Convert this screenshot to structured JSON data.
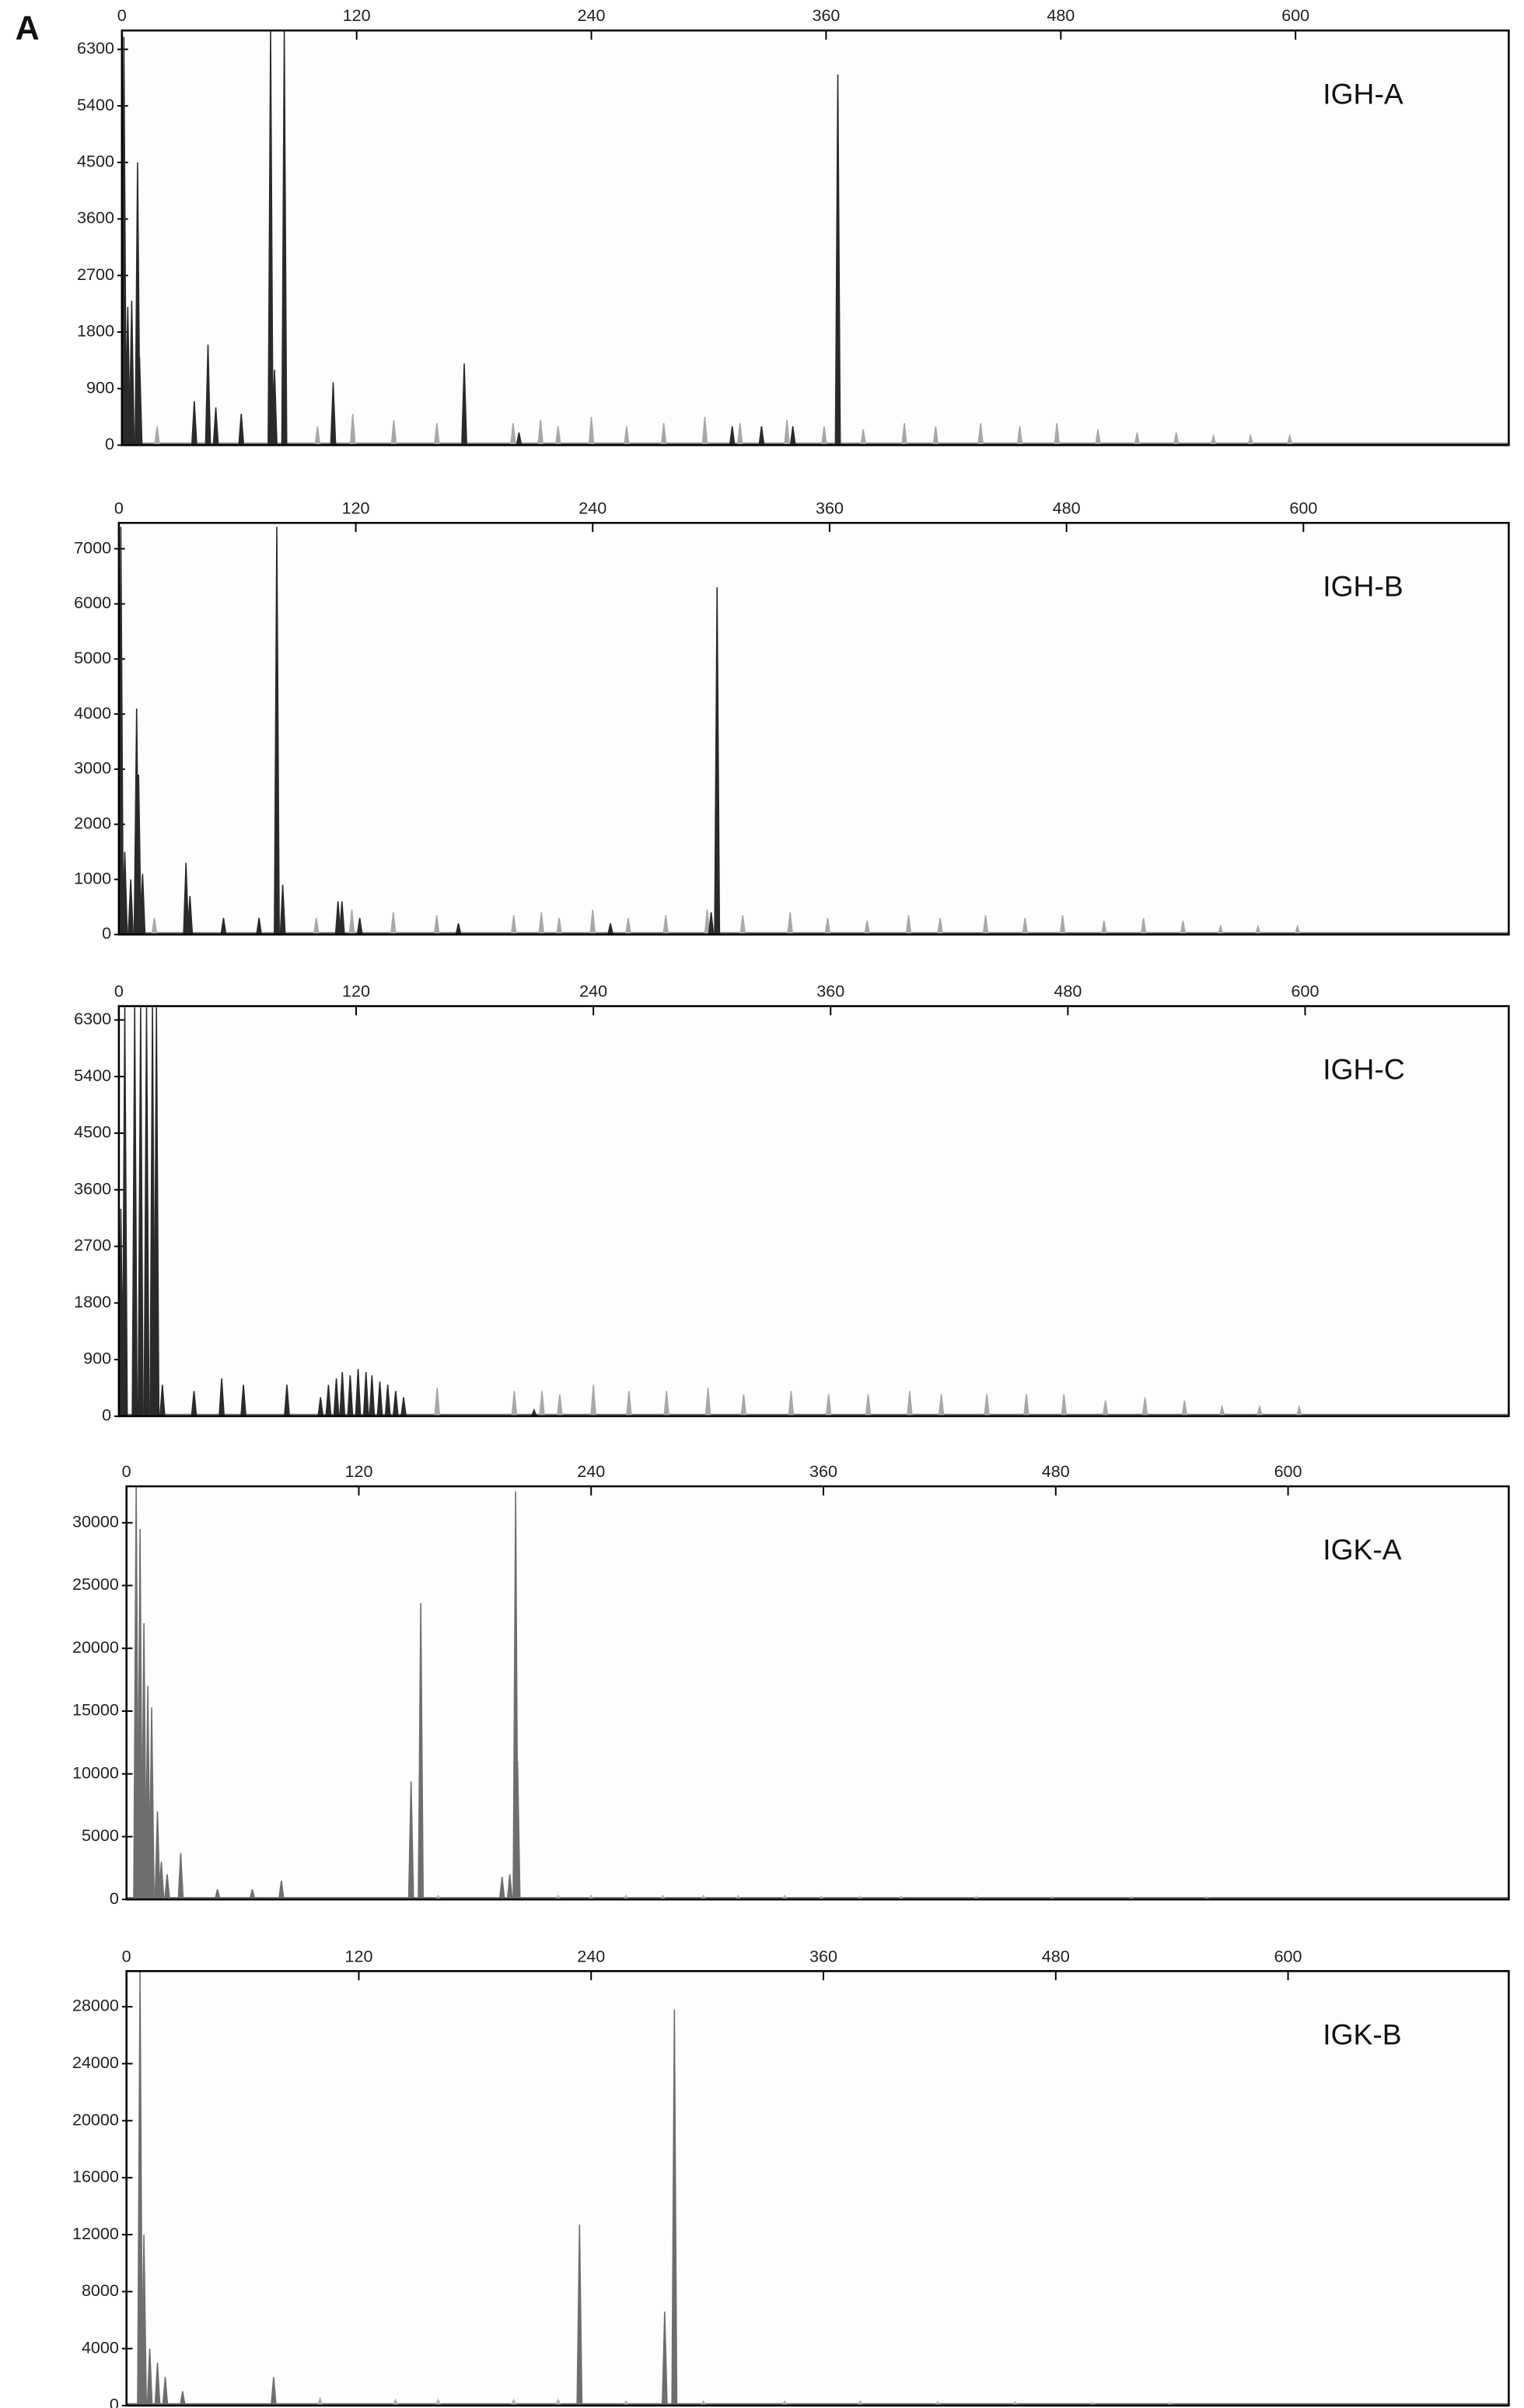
{
  "panel_label": "A",
  "chart_data": [
    {
      "type": "peaks",
      "label": "IGH-A",
      "xlim": [
        0,
        709
      ],
      "xticks": [
        0,
        120,
        240,
        360,
        480,
        600
      ],
      "ylim": [
        0,
        6600
      ],
      "yticks": [
        0,
        900,
        1800,
        2700,
        3600,
        4500,
        5400,
        6300
      ],
      "series": [
        {
          "color": "#2a2a2a",
          "x": [
            1,
            3,
            5,
            8,
            9,
            37,
            44,
            48,
            61,
            76,
            78,
            83,
            108,
            175,
            203,
            312,
            327,
            343,
            366
          ],
          "values": [
            6500,
            2200,
            2300,
            4500,
            1400,
            700,
            1600,
            600,
            500,
            6600,
            1200,
            6600,
            1000,
            1300,
            200,
            300,
            300,
            300,
            5900
          ]
        },
        {
          "color": "#a8a8a8",
          "x": [
            18,
            100,
            118,
            139,
            161,
            200,
            214,
            223,
            240,
            258,
            277,
            298,
            316,
            340,
            359,
            379,
            400,
            416,
            439,
            459,
            478,
            499,
            519,
            539,
            558,
            577,
            597
          ],
          "values": [
            300,
            300,
            500,
            400,
            350,
            350,
            400,
            300,
            450,
            300,
            350,
            450,
            350,
            400,
            300,
            250,
            350,
            300,
            350,
            300,
            350,
            250,
            200,
            200,
            150,
            150,
            150
          ]
        }
      ]
    },
    {
      "type": "peaks",
      "label": "IGH-B",
      "xlim": [
        0,
        704
      ],
      "xticks": [
        0,
        120,
        240,
        360,
        480,
        600
      ],
      "ylim": [
        0,
        7470
      ],
      "yticks": [
        0,
        1000,
        2000,
        3000,
        4000,
        5000,
        6000,
        7000
      ],
      "series": [
        {
          "color": "#2a2a2a",
          "x": [
            1,
            3,
            6,
            9,
            10,
            12,
            34,
            36,
            53,
            71,
            80,
            83,
            111,
            113,
            122,
            172,
            249,
            300,
            303
          ],
          "values": [
            7400,
            1500,
            1000,
            4100,
            2900,
            1100,
            1300,
            700,
            300,
            300,
            7400,
            900,
            600,
            600,
            300,
            200,
            200,
            400,
            6300
          ]
        },
        {
          "color": "#a8a8a8",
          "x": [
            18,
            100,
            118,
            139,
            161,
            200,
            214,
            223,
            240,
            258,
            277,
            298,
            316,
            340,
            359,
            379,
            400,
            416,
            439,
            459,
            478,
            499,
            519,
            539,
            558,
            577,
            597
          ],
          "values": [
            300,
            300,
            450,
            400,
            350,
            350,
            400,
            300,
            450,
            300,
            350,
            450,
            350,
            400,
            300,
            250,
            350,
            300,
            350,
            300,
            350,
            250,
            300,
            250,
            150,
            150,
            150
          ]
        }
      ]
    },
    {
      "type": "peaks",
      "label": "IGH-C",
      "xlim": [
        0,
        703
      ],
      "xticks": [
        0,
        120,
        240,
        360,
        480,
        600
      ],
      "ylim": [
        0,
        6520
      ],
      "yticks": [
        0,
        900,
        1800,
        2700,
        3600,
        4500,
        5400,
        6300
      ],
      "series": [
        {
          "color": "#2a2a2a",
          "x": [
            1,
            3,
            8,
            11,
            14,
            17,
            19,
            22,
            38,
            52,
            63,
            85,
            102,
            106,
            110,
            113,
            117,
            121,
            125,
            128,
            132,
            136,
            140,
            144,
            210
          ],
          "values": [
            3300,
            6500,
            6500,
            6500,
            6500,
            6500,
            6500,
            500,
            400,
            600,
            500,
            500,
            300,
            500,
            600,
            700,
            650,
            750,
            700,
            650,
            550,
            500,
            400,
            300,
            100
          ]
        },
        {
          "color": "#a8a8a8",
          "x": [
            161,
            200,
            214,
            223,
            240,
            258,
            277,
            298,
            316,
            340,
            359,
            379,
            400,
            416,
            439,
            459,
            478,
            499,
            519,
            539,
            558,
            577,
            597
          ],
          "values": [
            450,
            400,
            400,
            350,
            500,
            400,
            400,
            450,
            350,
            400,
            350,
            350,
            400,
            350,
            350,
            350,
            350,
            250,
            300,
            250,
            150,
            150,
            150
          ]
        }
      ]
    },
    {
      "type": "peaks",
      "label": "IGK-A",
      "xlim": [
        0,
        714
      ],
      "xticks": [
        0,
        120,
        240,
        360,
        480,
        600
      ],
      "ylim": [
        0,
        32900
      ],
      "yticks": [
        0,
        5000,
        10000,
        15000,
        20000,
        25000,
        30000
      ],
      "series": [
        {
          "color": "#6e6e6e",
          "x": [
            5,
            7,
            9,
            11,
            13,
            16,
            18,
            21,
            28,
            47,
            65,
            80,
            147,
            152,
            194,
            198,
            201,
            202
          ],
          "values": [
            32900,
            29500,
            22000,
            17000,
            15300,
            7000,
            3000,
            2000,
            3700,
            800,
            800,
            1500,
            9400,
            23600,
            1800,
            2000,
            32500,
            11000
          ]
        },
        {
          "color": "#b0b0b0",
          "x": [
            161,
            223,
            240,
            258,
            277,
            298,
            316,
            340,
            359,
            379,
            400,
            439,
            478,
            519,
            558
          ],
          "values": [
            300,
            300,
            300,
            300,
            300,
            300,
            300,
            300,
            250,
            250,
            250,
            250,
            200,
            200,
            200
          ]
        }
      ]
    },
    {
      "type": "peaks",
      "label": "IGK-B",
      "xlim": [
        0,
        714
      ],
      "xticks": [
        0,
        120,
        240,
        360,
        480,
        600
      ],
      "ylim": [
        0,
        30500
      ],
      "yticks": [
        0,
        4000,
        8000,
        12000,
        16000,
        20000,
        24000,
        28000
      ],
      "series": [
        {
          "color": "#6e6e6e",
          "x": [
            7,
            9,
            12,
            16,
            20,
            29,
            76,
            234,
            278,
            283
          ],
          "values": [
            30500,
            12000,
            4000,
            3000,
            2000,
            1000,
            2000,
            12700,
            6600,
            27800
          ]
        },
        {
          "color": "#b0b0b0",
          "x": [
            100,
            139,
            161,
            200,
            223,
            258,
            298,
            340,
            379,
            419,
            459,
            499,
            539
          ],
          "values": [
            500,
            400,
            400,
            400,
            400,
            300,
            300,
            300,
            300,
            250,
            250,
            200,
            200
          ]
        }
      ]
    }
  ]
}
